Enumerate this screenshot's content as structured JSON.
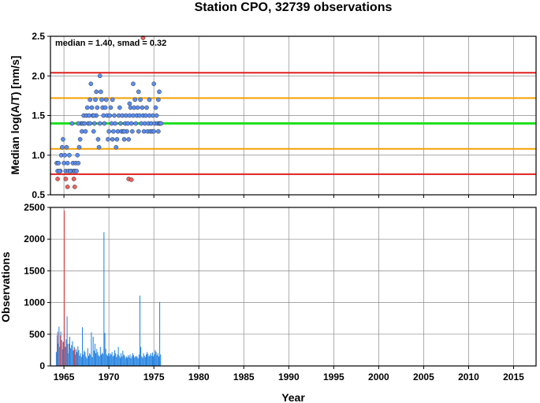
{
  "chart_data": [
    {
      "type": "scatter",
      "title": "Station CPO, 32739 observations",
      "xlabel": "",
      "ylabel": "Median log(A/T) [nm/s]",
      "xlim": [
        1963.5,
        2017.5
      ],
      "ylim": [
        0.5,
        2.5
      ],
      "xticks": [
        1965,
        1970,
        1975,
        1980,
        1985,
        1990,
        1995,
        2000,
        2005,
        2010,
        2015
      ],
      "yticks": [
        "0.5",
        "1.0",
        "1.5",
        "2.0",
        "2.5"
      ],
      "grid": true,
      "annotation": "median = 1.40, smad = 0.32",
      "reference_lines": [
        {
          "value": 2.04,
          "color": "#e0201f"
        },
        {
          "value": 1.72,
          "color": "#f5a000"
        },
        {
          "value": 1.4,
          "color": "#22e022"
        },
        {
          "value": 1.08,
          "color": "#f5a000"
        },
        {
          "value": 0.76,
          "color": "#e0201f"
        }
      ],
      "series": [
        {
          "color": "#5b8ef0",
          "points": [
            [
              1964.2,
              0.9
            ],
            [
              1964.3,
              0.8
            ],
            [
              1964.4,
              0.9
            ],
            [
              1964.6,
              0.8
            ],
            [
              1964.7,
              1.0
            ],
            [
              1964.8,
              1.1
            ],
            [
              1964.9,
              1.2
            ],
            [
              1965.0,
              0.9
            ],
            [
              1965.1,
              1.0
            ],
            [
              1965.2,
              0.8
            ],
            [
              1965.3,
              1.1
            ],
            [
              1965.4,
              0.9
            ],
            [
              1965.5,
              0.8
            ],
            [
              1965.6,
              1.0
            ],
            [
              1965.8,
              0.8
            ],
            [
              1965.9,
              1.4
            ],
            [
              1966.0,
              0.9
            ],
            [
              1966.1,
              0.8
            ],
            [
              1966.2,
              0.8
            ],
            [
              1966.3,
              0.9
            ],
            [
              1966.4,
              0.8
            ],
            [
              1966.5,
              1.0
            ],
            [
              1966.6,
              0.9
            ],
            [
              1966.7,
              1.1
            ],
            [
              1966.8,
              1.2
            ],
            [
              1966.9,
              1.4
            ],
            [
              1967.0,
              1.3
            ],
            [
              1967.1,
              1.4
            ],
            [
              1967.2,
              1.5
            ],
            [
              1967.3,
              1.4
            ],
            [
              1967.4,
              1.3
            ],
            [
              1967.5,
              1.5
            ],
            [
              1967.6,
              1.6
            ],
            [
              1967.7,
              1.4
            ],
            [
              1967.8,
              1.5
            ],
            [
              1967.9,
              1.7
            ],
            [
              1968.0,
              1.9
            ],
            [
              1968.1,
              1.6
            ],
            [
              1968.2,
              1.5
            ],
            [
              1968.3,
              1.3
            ],
            [
              1968.4,
              1.4
            ],
            [
              1968.5,
              1.7
            ],
            [
              1968.6,
              1.5
            ],
            [
              1968.7,
              1.6
            ],
            [
              1968.8,
              1.2
            ],
            [
              1968.9,
              1.1
            ],
            [
              1969.0,
              1.4
            ],
            [
              1969.1,
              1.8
            ],
            [
              1969.2,
              1.7
            ],
            [
              1969.3,
              1.6
            ],
            [
              1969.4,
              1.5
            ],
            [
              1969.5,
              1.4
            ],
            [
              1969.6,
              1.6
            ],
            [
              1969.7,
              1.7
            ],
            [
              1969.8,
              1.5
            ],
            [
              1969.9,
              1.2
            ],
            [
              1970.0,
              1.3
            ],
            [
              1970.1,
              1.5
            ],
            [
              1970.2,
              1.6
            ],
            [
              1970.3,
              1.4
            ],
            [
              1970.4,
              1.2
            ],
            [
              1970.5,
              1.3
            ],
            [
              1970.6,
              1.5
            ],
            [
              1970.7,
              1.4
            ],
            [
              1970.8,
              1.1
            ],
            [
              1970.9,
              1.2
            ],
            [
              1971.0,
              1.3
            ],
            [
              1971.1,
              1.5
            ],
            [
              1971.2,
              1.6
            ],
            [
              1971.3,
              1.4
            ],
            [
              1971.4,
              1.3
            ],
            [
              1971.5,
              1.5
            ],
            [
              1971.6,
              1.3
            ],
            [
              1971.7,
              1.2
            ],
            [
              1971.8,
              1.4
            ],
            [
              1971.9,
              1.5
            ],
            [
              1972.0,
              1.3
            ],
            [
              1972.1,
              1.4
            ],
            [
              1972.2,
              1.2
            ],
            [
              1972.3,
              1.5
            ],
            [
              1972.4,
              1.6
            ],
            [
              1972.5,
              1.4
            ],
            [
              1972.6,
              1.3
            ],
            [
              1972.7,
              1.5
            ],
            [
              1972.8,
              1.6
            ],
            [
              1972.9,
              1.7
            ],
            [
              1973.0,
              1.4
            ],
            [
              1973.1,
              1.5
            ],
            [
              1973.2,
              1.6
            ],
            [
              1973.3,
              1.3
            ],
            [
              1973.4,
              1.5
            ],
            [
              1973.5,
              1.7
            ],
            [
              1973.6,
              1.4
            ],
            [
              1973.7,
              1.6
            ],
            [
              1973.8,
              1.5
            ],
            [
              1973.9,
              1.3
            ],
            [
              1974.0,
              1.4
            ],
            [
              1974.1,
              1.5
            ],
            [
              1974.2,
              1.6
            ],
            [
              1974.3,
              1.3
            ],
            [
              1974.4,
              1.4
            ],
            [
              1974.5,
              1.5
            ],
            [
              1974.6,
              1.3
            ],
            [
              1974.7,
              1.4
            ],
            [
              1974.8,
              1.3
            ],
            [
              1974.9,
              1.5
            ],
            [
              1975.0,
              1.3
            ],
            [
              1975.1,
              1.4
            ],
            [
              1975.2,
              1.6
            ],
            [
              1975.3,
              1.5
            ],
            [
              1975.4,
              1.4
            ],
            [
              1975.5,
              1.3
            ],
            [
              1975.6,
              1.4
            ],
            [
              1975.7,
              1.4
            ],
            [
              1975.8,
              1.4
            ],
            [
              1964.5,
              0.8
            ],
            [
              1965.7,
              0.8
            ],
            [
              1966.6,
              1.4
            ],
            [
              1967.9,
              1.4
            ],
            [
              1968.6,
              1.8
            ],
            [
              1969.0,
              2.0
            ],
            [
              1970.4,
              1.7
            ],
            [
              1971.7,
              1.3
            ],
            [
              1972.7,
              1.9
            ],
            [
              1973.3,
              1.8
            ],
            [
              1974.5,
              1.7
            ],
            [
              1975.0,
              1.9
            ],
            [
              1975.6,
              1.8
            ],
            [
              1975.5,
              1.7
            ],
            [
              1972.3,
              1.65
            ],
            [
              1968.3,
              1.5
            ]
          ]
        },
        {
          "color": "#f06060",
          "points": [
            [
              1964.3,
              0.7
            ],
            [
              1965.2,
              0.7
            ],
            [
              1965.4,
              0.6
            ],
            [
              1966.2,
              0.6
            ],
            [
              1966.1,
              0.7
            ],
            [
              1972.2,
              0.7
            ],
            [
              1972.5,
              0.69
            ],
            [
              1973.8,
              2.48
            ]
          ]
        }
      ]
    },
    {
      "type": "bar",
      "title": "",
      "xlabel": "Year",
      "ylabel": "Observations",
      "xlim": [
        1963.5,
        2017.5
      ],
      "ylim": [
        0,
        2500
      ],
      "xticks": [
        1965,
        1970,
        1975,
        1980,
        1985,
        1990,
        1995,
        2000,
        2005,
        2010,
        2015
      ],
      "yticks": [
        "0",
        "500",
        "1000",
        "1500",
        "2000",
        "2500"
      ],
      "grid": true,
      "series": [
        {
          "color": "#1e7fe0",
          "x": [
            1964.15,
            1964.25,
            1964.35,
            1964.45,
            1964.55,
            1964.65,
            1964.75,
            1964.85,
            1964.95,
            1965.05,
            1965.15,
            1965.25,
            1965.35,
            1965.45,
            1965.55,
            1965.65,
            1965.75,
            1965.85,
            1965.95,
            1966.05,
            1966.15,
            1966.25,
            1966.35,
            1966.45,
            1966.55,
            1966.65,
            1966.75,
            1966.85,
            1966.95,
            1967.05,
            1967.15,
            1967.25,
            1967.35,
            1967.45,
            1967.55,
            1967.65,
            1967.75,
            1967.85,
            1967.95,
            1968.05,
            1968.15,
            1968.25,
            1968.35,
            1968.45,
            1968.55,
            1968.65,
            1968.75,
            1968.85,
            1968.95,
            1969.05,
            1969.15,
            1969.25,
            1969.35,
            1969.45,
            1969.55,
            1969.65,
            1969.75,
            1969.85,
            1969.95,
            1970.05,
            1970.15,
            1970.25,
            1970.35,
            1970.45,
            1970.55,
            1970.65,
            1970.75,
            1970.85,
            1970.95,
            1971.05,
            1971.15,
            1971.25,
            1971.35,
            1971.45,
            1971.55,
            1971.65,
            1971.75,
            1971.85,
            1971.95,
            1972.05,
            1972.15,
            1972.25,
            1972.35,
            1972.45,
            1972.55,
            1972.65,
            1972.75,
            1972.85,
            1972.95,
            1973.05,
            1973.15,
            1973.25,
            1973.35,
            1973.45,
            1973.55,
            1973.65,
            1973.75,
            1973.85,
            1973.95,
            1974.05,
            1974.15,
            1974.25,
            1974.35,
            1974.45,
            1974.55,
            1974.65,
            1974.75,
            1974.85,
            1974.95,
            1975.05,
            1975.15,
            1975.25,
            1975.35,
            1975.45,
            1975.55,
            1975.65,
            1975.75
          ],
          "values": [
            220,
            480,
            350,
            620,
            300,
            540,
            410,
            260,
            380,
            500,
            300,
            420,
            780,
            200,
            350,
            460,
            280,
            330,
            390,
            240,
            300,
            180,
            260,
            220,
            310,
            250,
            160,
            200,
            140,
            610,
            180,
            240,
            220,
            150,
            120,
            280,
            160,
            200,
            180,
            530,
            140,
            460,
            240,
            350,
            200,
            270,
            220,
            170,
            150,
            300,
            180,
            210,
            190,
            2110,
            520,
            270,
            180,
            160,
            200,
            160,
            200,
            180,
            220,
            150,
            170,
            250,
            200,
            140,
            180,
            300,
            160,
            130,
            200,
            150,
            240,
            180,
            160,
            120,
            150,
            130,
            170,
            140,
            180,
            120,
            150,
            200,
            170,
            130,
            150,
            160,
            140,
            120,
            180,
            1110,
            300,
            150,
            130,
            200,
            160,
            140,
            180,
            220,
            190,
            150,
            170,
            200,
            160,
            210,
            150,
            180,
            250,
            220,
            170,
            200,
            150,
            1010,
            180
          ]
        },
        {
          "color": "#e04040",
          "x": [
            1964.3,
            1964.6,
            1964.9,
            1965.05,
            1965.2,
            1965.4,
            1966.1,
            1966.2,
            1966.5
          ],
          "values": [
            540,
            480,
            380,
            2450,
            300,
            350,
            250,
            280,
            200
          ]
        }
      ]
    }
  ]
}
